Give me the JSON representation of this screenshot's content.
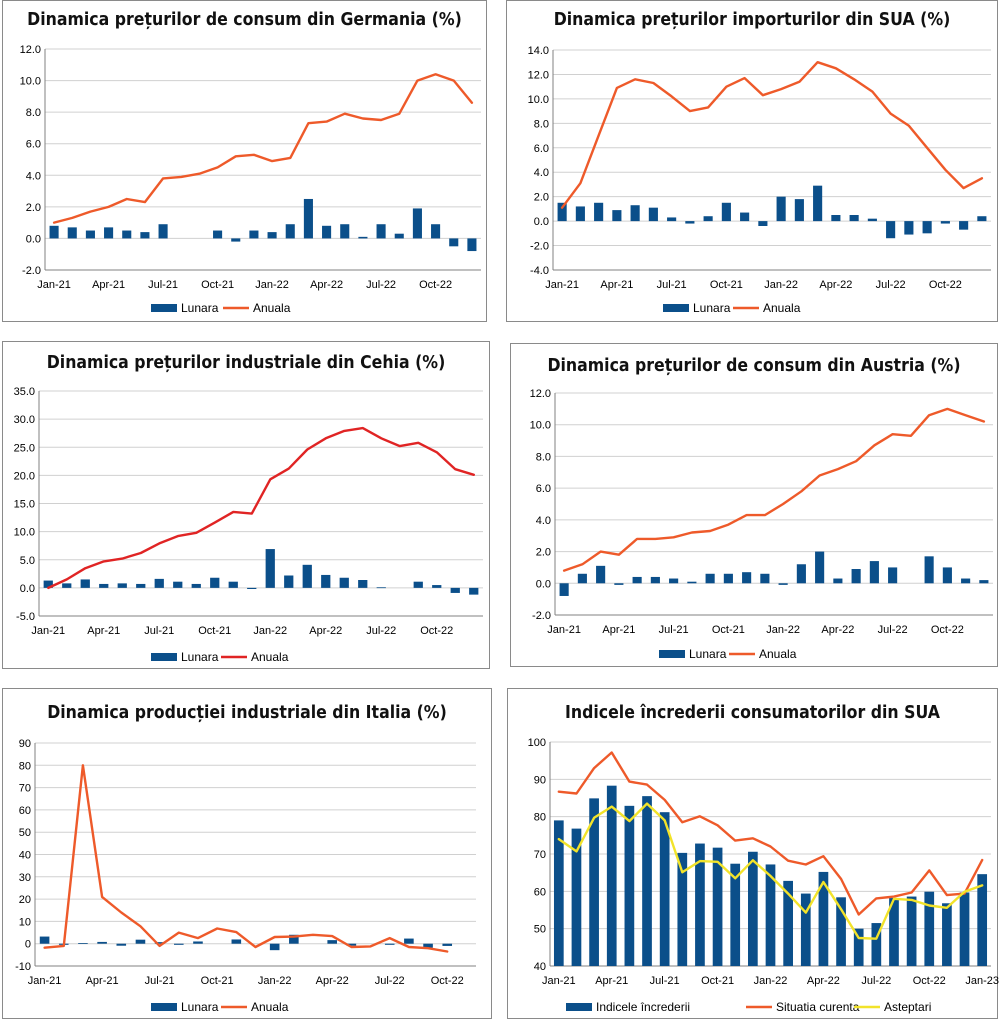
{
  "chart_data": [
    {
      "type": "bar+line",
      "title": "Dinamica prețurilor de consum din Germania (%)",
      "categories": [
        "Jan-21",
        "Feb-21",
        "Mar-21",
        "Apr-21",
        "May-21",
        "Jun-21",
        "Jul-21",
        "Aug-21",
        "Sep-21",
        "Oct-21",
        "Nov-21",
        "Dec-21",
        "Jan-22",
        "Feb-22",
        "Mar-22",
        "Apr-22",
        "May-22",
        "Jun-22",
        "Jul-22",
        "Aug-22",
        "Sep-22",
        "Oct-22",
        "Nov-22",
        "Dec-22"
      ],
      "xticks": [
        "Jan-21",
        "Apr-21",
        "Jul-21",
        "Oct-21",
        "Jan-22",
        "Apr-22",
        "Jul-22",
        "Oct-22"
      ],
      "ylim": [
        -2,
        12
      ],
      "ystep": 2,
      "ydecimals": 1,
      "series": [
        {
          "name": "Lunara",
          "kind": "bar",
          "color": "#0b4f8a",
          "values": [
            0.8,
            0.7,
            0.5,
            0.7,
            0.5,
            0.4,
            0.9,
            0.0,
            0.0,
            0.5,
            -0.2,
            0.5,
            0.4,
            0.9,
            2.5,
            0.8,
            0.9,
            0.1,
            0.9,
            0.3,
            1.9,
            0.9,
            -0.5,
            -0.8
          ]
        },
        {
          "name": "Anuala",
          "kind": "line",
          "color": "#ee5a2a",
          "values": [
            1.0,
            1.3,
            1.7,
            2.0,
            2.5,
            2.3,
            3.8,
            3.9,
            4.1,
            4.5,
            5.2,
            5.3,
            4.9,
            5.1,
            7.3,
            7.4,
            7.9,
            7.6,
            7.5,
            7.9,
            10.0,
            10.4,
            10.0,
            8.6
          ]
        }
      ]
    },
    {
      "type": "bar+line",
      "title": "Dinamica prețurilor importurilor din SUA (%)",
      "categories": [
        "Jan-21",
        "Feb-21",
        "Mar-21",
        "Apr-21",
        "May-21",
        "Jun-21",
        "Jul-21",
        "Aug-21",
        "Sep-21",
        "Oct-21",
        "Nov-21",
        "Dec-21",
        "Jan-22",
        "Feb-22",
        "Mar-22",
        "Apr-22",
        "May-22",
        "Jun-22",
        "Jul-22",
        "Aug-22",
        "Sep-22",
        "Oct-22",
        "Nov-22",
        "Dec-22"
      ],
      "xticks": [
        "Jan-21",
        "Apr-21",
        "Jul-21",
        "Oct-21",
        "Jan-22",
        "Apr-22",
        "Jul-22",
        "Oct-22"
      ],
      "ylim": [
        -4,
        14
      ],
      "ystep": 2,
      "ydecimals": 1,
      "series": [
        {
          "name": "Lunara",
          "kind": "bar",
          "color": "#0b4f8a",
          "values": [
            1.5,
            1.2,
            1.5,
            0.9,
            1.3,
            1.1,
            0.3,
            -0.2,
            0.4,
            1.5,
            0.7,
            -0.4,
            2.0,
            1.8,
            2.9,
            0.5,
            0.5,
            0.2,
            -1.4,
            -1.1,
            -1.0,
            -0.2,
            -0.7,
            0.4
          ]
        },
        {
          "name": "Anuala",
          "kind": "line",
          "color": "#ee5a2a",
          "values": [
            1.1,
            3.1,
            7.0,
            10.9,
            11.6,
            11.3,
            10.2,
            9.0,
            9.3,
            11.0,
            11.7,
            10.3,
            10.8,
            11.4,
            13.0,
            12.5,
            11.6,
            10.6,
            8.8,
            7.8,
            6.0,
            4.2,
            2.7,
            3.5
          ]
        }
      ]
    },
    {
      "type": "bar+line",
      "title": "Dinamica prețurilor industriale din Cehia (%)",
      "categories": [
        "Jan-21",
        "Feb-21",
        "Mar-21",
        "Apr-21",
        "May-21",
        "Jun-21",
        "Jul-21",
        "Aug-21",
        "Sep-21",
        "Oct-21",
        "Nov-21",
        "Dec-21",
        "Jan-22",
        "Feb-22",
        "Mar-22",
        "Apr-22",
        "May-22",
        "Jun-22",
        "Jul-22",
        "Aug-22",
        "Sep-22",
        "Oct-22",
        "Nov-22",
        "Dec-22"
      ],
      "xticks": [
        "Jan-21",
        "Apr-21",
        "Jul-21",
        "Oct-21",
        "Jan-22",
        "Apr-22",
        "Jul-22",
        "Oct-22"
      ],
      "ylim": [
        -5,
        35
      ],
      "ystep": 5,
      "ydecimals": 1,
      "series": [
        {
          "name": "Lunara",
          "kind": "bar",
          "color": "#0b4f8a",
          "values": [
            1.3,
            0.8,
            1.5,
            0.7,
            0.8,
            0.7,
            1.6,
            1.1,
            0.7,
            1.8,
            1.1,
            -0.2,
            6.9,
            2.2,
            4.1,
            2.3,
            1.8,
            1.4,
            0.1,
            0.0,
            1.1,
            0.5,
            -0.9,
            -1.2
          ]
        },
        {
          "name": "Anuala",
          "kind": "line",
          "color": "#e02424",
          "values": [
            0.0,
            1.5,
            3.5,
            4.7,
            5.2,
            6.2,
            7.9,
            9.2,
            9.8,
            11.6,
            13.5,
            13.2,
            19.3,
            21.2,
            24.6,
            26.6,
            27.9,
            28.4,
            26.6,
            25.2,
            25.8,
            24.1,
            21.1,
            20.1
          ]
        }
      ]
    },
    {
      "type": "bar+line",
      "title": "Dinamica prețurilor de consum din Austria (%)",
      "categories": [
        "Jan-21",
        "Feb-21",
        "Mar-21",
        "Apr-21",
        "May-21",
        "Jun-21",
        "Jul-21",
        "Aug-21",
        "Sep-21",
        "Oct-21",
        "Nov-21",
        "Dec-21",
        "Jan-22",
        "Feb-22",
        "Mar-22",
        "Apr-22",
        "May-22",
        "Jun-22",
        "Jul-22",
        "Aug-22",
        "Sep-22",
        "Oct-22",
        "Nov-22",
        "Dec-22"
      ],
      "xticks": [
        "Jan-21",
        "Apr-21",
        "Jul-21",
        "Oct-21",
        "Jan-22",
        "Apr-22",
        "Jul-22",
        "Oct-22"
      ],
      "ylim": [
        -2,
        12
      ],
      "ystep": 2,
      "ydecimals": 1,
      "series": [
        {
          "name": "Lunara",
          "kind": "bar",
          "color": "#0b4f8a",
          "values": [
            -0.8,
            0.6,
            1.1,
            -0.1,
            0.4,
            0.4,
            0.3,
            0.1,
            0.6,
            0.6,
            0.7,
            0.6,
            -0.1,
            1.2,
            2.0,
            0.3,
            0.9,
            1.4,
            1.0,
            0.0,
            1.7,
            1.0,
            0.3,
            0.2
          ]
        },
        {
          "name": "Anuala",
          "kind": "line",
          "color": "#ee5a2a",
          "values": [
            0.8,
            1.2,
            2.0,
            1.8,
            2.8,
            2.8,
            2.9,
            3.2,
            3.3,
            3.7,
            4.3,
            4.3,
            5.0,
            5.8,
            6.8,
            7.2,
            7.7,
            8.7,
            9.4,
            9.3,
            10.6,
            11.0,
            10.6,
            10.2
          ]
        }
      ]
    },
    {
      "type": "bar+line",
      "title": "Dinamica producției industriale din Italia (%)",
      "categories": [
        "Jan-21",
        "Feb-21",
        "Mar-21",
        "Apr-21",
        "May-21",
        "Jun-21",
        "Jul-21",
        "Aug-21",
        "Sep-21",
        "Oct-21",
        "Nov-21",
        "Dec-21",
        "Jan-22",
        "Feb-22",
        "Mar-22",
        "Apr-22",
        "May-22",
        "Jun-22",
        "Jul-22",
        "Aug-22",
        "Sep-22",
        "Oct-22",
        "Nov-22"
      ],
      "xticks": [
        "Jan-21",
        "Apr-21",
        "Jul-21",
        "Oct-21",
        "Jan-22",
        "Apr-22",
        "Jul-22",
        "Oct-22"
      ],
      "ylim": [
        -10,
        90
      ],
      "ystep": 10,
      "ydecimals": 0,
      "series": [
        {
          "name": "Lunara",
          "kind": "bar",
          "color": "#0b4f8a",
          "values": [
            3.2,
            -0.5,
            0.3,
            0.8,
            -0.9,
            1.8,
            0.7,
            -0.5,
            1.0,
            0.0,
            1.9,
            0.0,
            -2.9,
            4.0,
            0.0,
            1.6,
            -0.9,
            0.0,
            -0.5,
            2.3,
            -1.8,
            -1.0,
            0.0
          ]
        },
        {
          "name": "Anuala",
          "kind": "line",
          "color": "#ee5a2a",
          "values": [
            -1.8,
            -1.0,
            80.0,
            21.0,
            14.0,
            7.8,
            -1.0,
            5.0,
            2.5,
            6.8,
            5.2,
            -1.5,
            3.0,
            3.2,
            4.0,
            3.4,
            -1.5,
            -1.2,
            2.5,
            -1.5,
            -2.0,
            -3.5,
            null
          ]
        }
      ]
    },
    {
      "type": "bar+line",
      "title": "Indicele încrederii consumatorilor din SUA",
      "categories": [
        "Jan-21",
        "Feb-21",
        "Mar-21",
        "Apr-21",
        "May-21",
        "Jun-21",
        "Jul-21",
        "Aug-21",
        "Sep-21",
        "Oct-21",
        "Nov-21",
        "Dec-21",
        "Jan-22",
        "Feb-22",
        "Mar-22",
        "Apr-22",
        "May-22",
        "Jun-22",
        "Jul-22",
        "Aug-22",
        "Sep-22",
        "Oct-22",
        "Nov-22",
        "Dec-22",
        "Jan-23"
      ],
      "xticks": [
        "Jan-21",
        "Apr-21",
        "Jul-21",
        "Oct-21",
        "Jan-22",
        "Apr-22",
        "Jul-22",
        "Oct-22",
        "Jan-23"
      ],
      "ylim": [
        40,
        100
      ],
      "ystep": 10,
      "ydecimals": 0,
      "series": [
        {
          "name": "Indicele încrederii",
          "kind": "bar",
          "color": "#0b4f8a",
          "values": [
            79.0,
            76.8,
            84.9,
            88.3,
            82.9,
            85.5,
            81.2,
            70.3,
            72.8,
            71.7,
            67.4,
            70.6,
            67.2,
            62.8,
            59.4,
            65.2,
            58.4,
            50.0,
            51.5,
            58.2,
            58.6,
            59.9,
            56.8,
            59.7,
            64.6
          ]
        },
        {
          "name": "Situatia curenta",
          "kind": "line",
          "color": "#ee5a2a",
          "values": [
            86.7,
            86.2,
            93.0,
            97.2,
            89.4,
            88.6,
            84.5,
            78.5,
            80.1,
            77.7,
            73.6,
            74.2,
            72.0,
            68.2,
            67.2,
            69.4,
            63.3,
            53.8,
            58.1,
            58.6,
            59.7,
            65.6,
            59.0,
            59.4,
            68.4
          ]
        },
        {
          "name": "Asteptari",
          "kind": "line",
          "color": "#f2e32a",
          "values": [
            74.0,
            70.7,
            79.7,
            82.7,
            78.8,
            83.5,
            79.0,
            65.1,
            68.1,
            67.9,
            63.5,
            68.3,
            64.1,
            59.4,
            54.3,
            62.5,
            55.2,
            47.5,
            47.3,
            58.0,
            57.7,
            56.2,
            55.6,
            59.9,
            61.6
          ]
        }
      ]
    }
  ]
}
